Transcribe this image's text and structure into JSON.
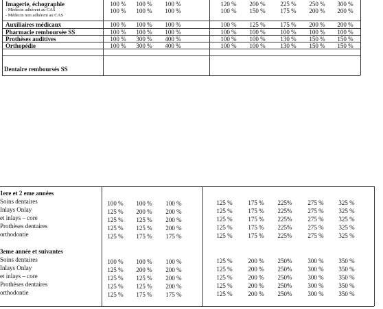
{
  "top_table": {
    "rows": [
      {
        "label": "Imagerie, échographie",
        "sublabels": [
          "- Médecin adhérent au CAS",
          "- Médecin non adhérent au CAS"
        ],
        "group1": [
          [
            "100 %",
            "100 %",
            "100 %"
          ],
          [
            "100 %",
            "100 %",
            "100 %"
          ]
        ],
        "group2": [
          [
            "120 %",
            "200 %",
            "225 %",
            "250 %",
            "300 %"
          ],
          [
            "100 %",
            "150 %",
            "175 %",
            "200 %",
            "200 %"
          ]
        ]
      },
      {
        "label": "Auxiliaires médicaux",
        "group1": [
          [
            "100 %",
            "100 %",
            "100 %"
          ]
        ],
        "group2": [
          [
            "100 %",
            "125 %",
            "175 %",
            "200 %",
            "200 %"
          ]
        ]
      },
      {
        "label": "Pharmacie remboursée SS",
        "group1": [
          [
            "100 %",
            "100 %",
            "100 %"
          ]
        ],
        "group2": [
          [
            "100 %",
            "100 %",
            "100 %",
            "100 %",
            "100 %"
          ]
        ]
      },
      {
        "label": "Prothèses auditives",
        "group1": [
          [
            "100 %",
            "300 %",
            "400 %"
          ]
        ],
        "group2": [
          [
            "100 %",
            "100 %",
            "130 %",
            "150 %",
            "150 %"
          ]
        ]
      },
      {
        "label": "Orthopédie",
        "group1": [
          [
            "100 %",
            "300 %",
            "400 %"
          ]
        ],
        "group2": [
          [
            "100 %",
            "100 %",
            "130 %",
            "150 %",
            "150 %"
          ]
        ]
      }
    ],
    "dental_label": "Dentaire remboursés SS"
  },
  "bottom_table": {
    "sections": [
      {
        "title": "1ere et 2 eme années",
        "rows": [
          {
            "label": "Soins dentaires",
            "group1": [
              "100 %",
              "100 %",
              "100 %"
            ],
            "group2": [
              "125 %",
              "175 %",
              "225%",
              "275 %",
              "325 %"
            ]
          },
          {
            "label": "Inlays  Onlay",
            "group1": [
              "125 %",
              "200 %",
              "200 %"
            ],
            "group2": [
              "125 %",
              "175 %",
              "225%",
              "275 %",
              "325 %"
            ]
          },
          {
            "label": "et inlays – core",
            "group1": [
              "125 %",
              "125 %",
              "200 %"
            ],
            "group2": [
              "125 %",
              "175 %",
              "225%",
              "275 %",
              "325 %"
            ]
          },
          {
            "label": "Prothèses dentaires",
            "group1": [
              "125 %",
              "125 %",
              "200 %"
            ],
            "group2": [
              "125 %",
              "175 %",
              "225%",
              "275 %",
              "325 %"
            ]
          },
          {
            "label": "orthodontie",
            "group1": [
              "125 %",
              "175 %",
              "175 %"
            ],
            "group2": [
              "125 %",
              "175 %",
              "225%",
              "275 %",
              "325 %"
            ]
          }
        ]
      },
      {
        "title": "3eme année et suivantes",
        "rows": [
          {
            "label": "Soins dentaires",
            "group1": [
              "100 %",
              "100 %",
              "100 %"
            ],
            "group2": [
              "125 %",
              "200 %",
              "250%",
              "300 %",
              "350 %"
            ]
          },
          {
            "label": "Inlays  Onlay",
            "group1": [
              "125 %",
              "200 %",
              "200 %"
            ],
            "group2": [
              "125 %",
              "200 %",
              "250%",
              "300 %",
              "350 %"
            ]
          },
          {
            "label": "et inlays – core",
            "group1": [
              "125 %",
              "125 %",
              "200 %"
            ],
            "group2": [
              "125 %",
              "200 %",
              "250%",
              "300 %",
              "350 %"
            ]
          },
          {
            "label": "Prothèses dentaires",
            "group1": [
              "125 %",
              "125 %",
              "200 %"
            ],
            "group2": [
              "125 %",
              "200 %",
              "250%",
              "300 %",
              "350 %"
            ]
          },
          {
            "label": "orthodontie",
            "group1": [
              "125 %",
              "175 %",
              "175 %"
            ],
            "group2": [
              "125 %",
              "200 %",
              "250%",
              "300 %",
              "350 %"
            ]
          }
        ]
      }
    ]
  }
}
